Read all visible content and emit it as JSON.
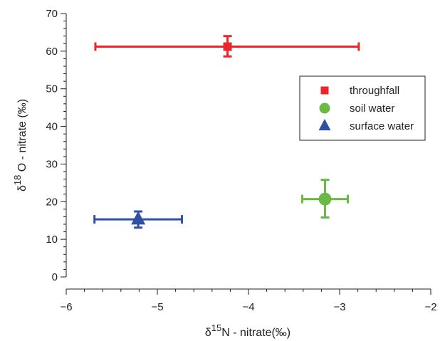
{
  "chart_data": {
    "type": "scatter",
    "xlabel": {
      "symbol": "δ",
      "superscript": "15",
      "text": "N - nitrate(‰)"
    },
    "ylabel": {
      "symbol": "δ",
      "superscript": "18",
      "text": " O - nitrate (‰)"
    },
    "xlim": [
      -6,
      -2
    ],
    "ylim": [
      0,
      70
    ],
    "x_ticks": [
      -6,
      -5,
      -4,
      -3,
      -2
    ],
    "x_tick_labels": [
      "−6",
      "−5",
      "−4",
      "−3",
      "−2"
    ],
    "y_ticks": [
      0,
      10,
      20,
      30,
      40,
      50,
      60,
      70
    ],
    "y_tick_labels": [
      "0",
      "10",
      "20",
      "30",
      "40",
      "50",
      "60",
      "70"
    ],
    "grid": false,
    "legend_position": "right",
    "series": [
      {
        "name": "throughfall",
        "marker": "square",
        "color": "#e8262b",
        "x": -4.23,
        "y": 61.2,
        "x_err_low": -5.68,
        "x_err_high": -2.79,
        "y_err_low": 58.6,
        "y_err_high": 64.0
      },
      {
        "name": "soil water",
        "marker": "circle",
        "color": "#6ab945",
        "x": -3.16,
        "y": 20.7,
        "x_err_low": -3.41,
        "x_err_high": -2.91,
        "y_err_low": 15.8,
        "y_err_high": 25.8
      },
      {
        "name": "surface water",
        "marker": "triangle",
        "color": "#3150a1",
        "x": -5.21,
        "y": 15.3,
        "x_err_low": -5.69,
        "x_err_high": -4.73,
        "y_err_low": 13.1,
        "y_err_high": 17.4
      }
    ]
  }
}
